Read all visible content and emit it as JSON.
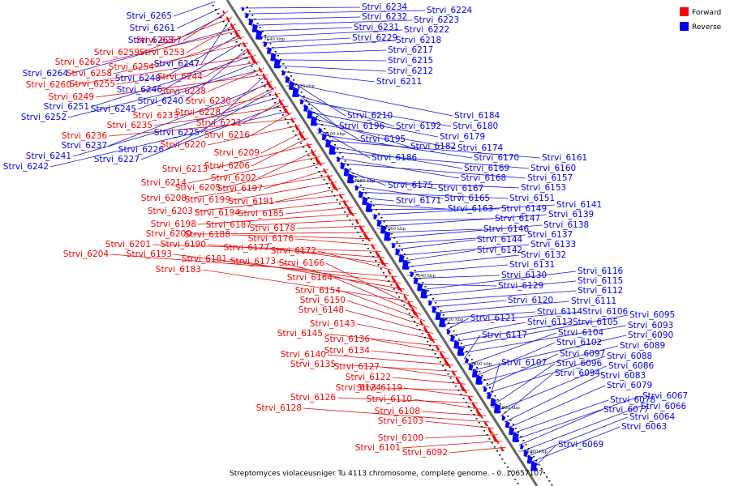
{
  "caption": "Streptomyces violaceusniger Tu 4113 chromosome, complete genome. - 0..10657107",
  "legend": [
    {
      "label": "Forward",
      "color": "#ff0000"
    },
    {
      "label": "Reverse",
      "color": "#0000ff"
    }
  ],
  "colors": {
    "forward": "#ff0000",
    "reverse": "#0000ff",
    "forward_line": "#e01010",
    "reverse_line": "#1818e0"
  },
  "ticks": [
    "7140 kbp",
    "7120 kbp",
    "7100 kbp",
    "7080 kbp",
    "7060 kbp",
    "7040 kbp",
    "7020 kbp",
    "7000 kbp",
    "6980 kbp",
    "6960 kbp"
  ],
  "reverse_left": [
    "Strvi_6265",
    "Strvi_6261",
    "Strvi_6263",
    "Strvi_6247",
    "Strvi_6264",
    "Strvi_6248",
    "Strvi_6246",
    "Strvi_6240",
    "Strvi_6251",
    "Strvi_6245",
    "Strvi_6252",
    "Strvi_6225",
    "Strvi_6237",
    "Strvi_6226",
    "Strvi_6241",
    "Strvi_6227",
    "Strvi_6242"
  ],
  "forward_left": [
    "Strvi_6257",
    "Strvi_6259",
    "Strvi_6253",
    "Strvi_6262",
    "Strvi_6254",
    "Strvi_6258",
    "Strvi_6244",
    "Strvi_6260",
    "Strvi_6255",
    "Strvi_6238",
    "Strvi_6249",
    "Strvi_6230",
    "Strvi_6228",
    "Strvi_6233",
    "Strvi_6221",
    "Strvi_6235",
    "Strvi_6216",
    "Strvi_6236",
    "Strvi_6220",
    "Strvi_6209",
    "Strvi_6206",
    "Strvi_6213",
    "Strvi_6202",
    "Strvi_6214",
    "Strvi_6205",
    "Strvi_6197",
    "Strvi_6208",
    "Strvi_6199",
    "Strvi_6191",
    "Strvi_6203",
    "Strvi_6194",
    "Strvi_6185",
    "Strvi_6198",
    "Strvi_6187",
    "Strvi_6178",
    "Strvi_6200",
    "Strvi_6188",
    "Strvi_6176",
    "Strvi_6201",
    "Strvi_6190",
    "Strvi_6177",
    "Strvi_6172",
    "Strvi_6204",
    "Strvi_6193",
    "Strvi_6181",
    "Strvi_6173",
    "Strvi_6183",
    "Strvi_6166",
    "Strvi_6164",
    "Strvi_6154",
    "Strvi_6150",
    "Strvi_6148",
    "Strvi_6143",
    "Strvi_6145",
    "Strvi_6136",
    "Strvi_6134",
    "Strvi_6140",
    "Strvi_6135",
    "Strvi_6127",
    "Strvi_6122",
    "Strvi_6124",
    "Strvi_6119",
    "Strvi_6126",
    "Strvi_6110",
    "Strvi_6108",
    "Strvi_6128",
    "Strvi_6103",
    "Strvi_6100",
    "Strvi_6101",
    "Strvi_6092"
  ],
  "reverse_right": [
    "Strvi_6234",
    "Strvi_6224",
    "Strvi_6232",
    "Strvi_6223",
    "Strvi_6231",
    "Strvi_6222",
    "Strvi_6229",
    "Strvi_6218",
    "Strvi_6217",
    "Strvi_6215",
    "Strvi_6212",
    "Strvi_6211",
    "Strvi_6210",
    "Strvi_6184",
    "Strvi_6196",
    "Strvi_6192",
    "Strvi_6180",
    "Strvi_6195",
    "Strvi_6179",
    "Strvi_6182",
    "Strvi_6174",
    "Strvi_6186",
    "Strvi_6170",
    "Strvi_6161",
    "Strvi_6169",
    "Strvi_6160",
    "Strvi_6168",
    "Strvi_6157",
    "Strvi_6175",
    "Strvi_6167",
    "Strvi_6153",
    "Strvi_6165",
    "Strvi_6151",
    "Strvi_6171",
    "Strvi_6163",
    "Strvi_6149",
    "Strvi_6141",
    "Strvi_6147",
    "Strvi_6139",
    "Strvi_6146",
    "Strvi_6138",
    "Strvi_6137",
    "Strvi_6144",
    "Strvi_6133",
    "Strvi_6142",
    "Strvi_6132",
    "Strvi_6131",
    "Strvi_6130",
    "Strvi_6129",
    "Strvi_6116",
    "Strvi_6115",
    "Strvi_6112",
    "Strvi_6120",
    "Strvi_6111",
    "Strvi_6114",
    "Strvi_6106",
    "Strvi_6121",
    "Strvi_6113",
    "Strvi_6105",
    "Strvi_6095",
    "Strvi_6093",
    "Strvi_6117",
    "Strvi_6104",
    "Strvi_6090",
    "Strvi_6102",
    "Strvi_6089",
    "Strvi_6097",
    "Strvi_6088",
    "Strvi_6107",
    "Strvi_6096",
    "Strvi_6086",
    "Strvi_6094",
    "Strvi_6083",
    "Strvi_6079",
    "Strvi_6078",
    "Strvi_6067",
    "Strvi_6077",
    "Strvi_6066",
    "Strvi_6064",
    "Strvi_6063",
    "Strvi_6069"
  ]
}
